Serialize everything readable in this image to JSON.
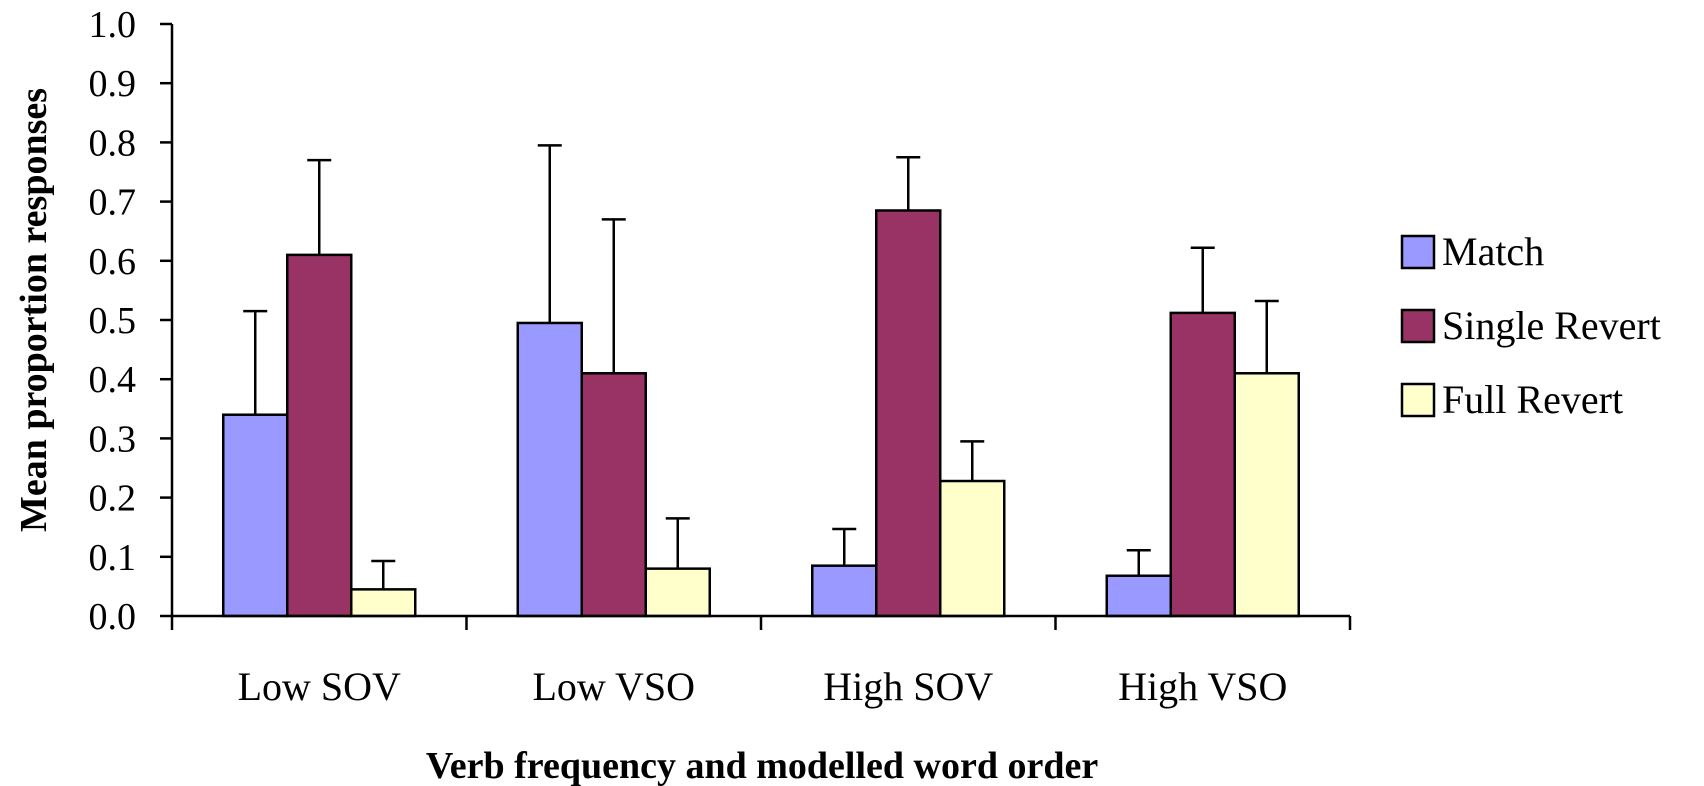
{
  "chart_data": {
    "type": "bar",
    "categories": [
      "Low SOV",
      "Low VSO",
      "High SOV",
      "High VSO"
    ],
    "series": [
      {
        "name": "Match",
        "color": "#9999ff",
        "values": [
          0.34,
          0.495,
          0.085,
          0.068
        ],
        "errors": [
          0.175,
          0.3,
          0.062,
          0.043
        ]
      },
      {
        "name": "Single Revert",
        "color": "#993366",
        "values": [
          0.61,
          0.41,
          0.685,
          0.512
        ],
        "errors": [
          0.16,
          0.26,
          0.09,
          0.11
        ]
      },
      {
        "name": "Full Revert",
        "color": "#ffffcc",
        "values": [
          0.045,
          0.08,
          0.228,
          0.41
        ],
        "errors": [
          0.048,
          0.085,
          0.067,
          0.122
        ]
      }
    ],
    "yticks": [
      "0.0",
      "0.1",
      "0.2",
      "0.3",
      "0.4",
      "0.5",
      "0.6",
      "0.7",
      "0.8",
      "0.9",
      "1.0"
    ],
    "ylim": [
      0,
      1.0
    ],
    "xlabel": "Verb frequency and modelled word order",
    "ylabel": "Mean proportion responses",
    "grid": false,
    "legend_position": "right"
  }
}
